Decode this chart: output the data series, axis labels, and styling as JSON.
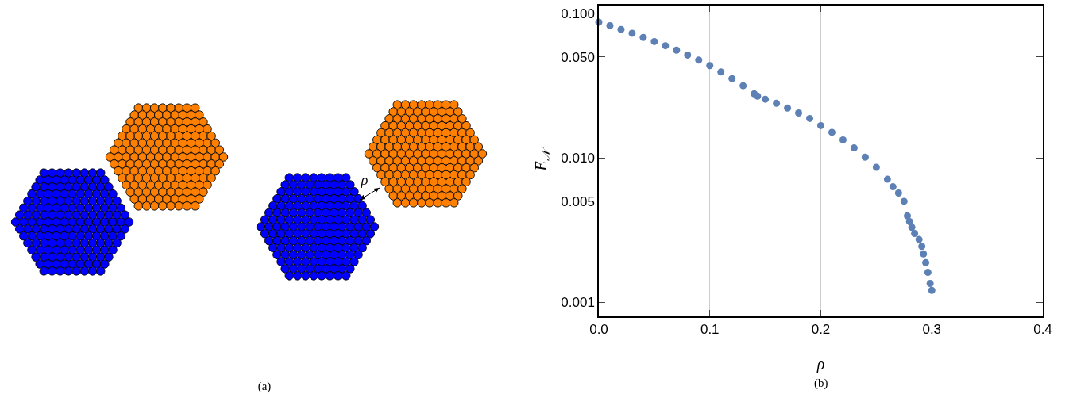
{
  "chart_data": [
    {
      "type": "other",
      "annotations": [
        "ρ",
        "(a)"
      ]
    },
    {
      "type": "scatter",
      "xlabel": "ρ",
      "ylabel": "E$_{𝒩}$",
      "annotations": [
        "(b)"
      ],
      "log": "y",
      "grid": "x",
      "marker": "circle",
      "xlim": [
        0,
        0.4
      ],
      "xticks": [
        {
          "value": 0,
          "label": "0.0"
        },
        0.1,
        0.2,
        0.3,
        0.4
      ],
      "ylim": [
        0.0008,
        0.113
      ],
      "yticks": [
        {
          "value": 0.001,
          "label": "0.001"
        },
        {
          "value": 0.005,
          "label": "0.005"
        },
        {
          "value": 0.01,
          "label": "0.010"
        },
        {
          "value": 0.05,
          "label": "0.050"
        },
        {
          "value": 0.1,
          "label": "0.100"
        }
      ],
      "x": [
        0,
        0.01,
        0.02,
        0.03,
        0.04,
        0.05,
        0.06,
        0.07,
        0.08,
        0.09,
        0.1,
        0.11,
        0.12,
        0.13,
        0.14,
        0.143,
        0.15,
        0.16,
        0.17,
        0.18,
        0.19,
        0.2,
        0.21,
        0.22,
        0.23,
        0.24,
        0.25,
        0.26,
        0.265,
        0.27,
        0.275,
        0.278,
        0.28,
        0.282,
        0.2845,
        0.2885,
        0.291,
        0.2925,
        0.2945,
        0.2965,
        0.2985,
        0.3
      ],
      "series": [
        {
          "color": "#5e81b5",
          "values": [
            0.0867,
            0.082,
            0.0772,
            0.0727,
            0.068,
            0.0637,
            0.0596,
            0.0555,
            0.0514,
            0.0474,
            0.0434,
            0.0392,
            0.0353,
            0.0315,
            0.0277,
            0.0267,
            0.0254,
            0.0238,
            0.0221,
            0.0204,
            0.0187,
            0.0167,
            0.015,
            0.0133,
            0.0117,
            0.0101,
            0.0086,
            0.0071,
            0.0063,
            0.0057,
            0.005,
            0.00396,
            0.00362,
            0.0033,
            0.00299,
            0.00272,
            0.00244,
            0.00216,
            0.00188,
            0.00161,
            0.00135,
            0.00121
          ]
        }
      ]
    }
  ]
}
